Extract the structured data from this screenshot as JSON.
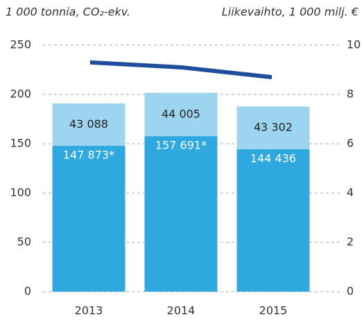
{
  "chart_data": {
    "type": "bar",
    "title": "1 000 tonnia, CO₂-ekv.",
    "y2_title": "Liikevaihto, 1 000 milj. €",
    "stacked": true,
    "categories": [
      "2013",
      "2014",
      "2015"
    ],
    "series": [
      {
        "color": "#2ea8df",
        "values": [
          147.873,
          157.691,
          144.436
        ],
        "value_labels": [
          "147 873*",
          "157 691*",
          "144 436"
        ],
        "label_color": "#ffffff"
      },
      {
        "color": "#9dd5f0",
        "values": [
          43.088,
          44.005,
          43.302
        ],
        "value_labels": [
          "43 088",
          "44 005",
          "43 302"
        ],
        "label_color": "#222222"
      },
      {
        "type": "line",
        "axis": "y2",
        "color": "#1f4e9c",
        "values": [
          9.3,
          9.1,
          8.7
        ]
      }
    ],
    "ylim": [
      0,
      250
    ],
    "yticks": [
      0,
      50,
      100,
      150,
      200,
      250
    ],
    "y2lim": [
      0,
      10
    ],
    "y2ticks": [
      0,
      2,
      4,
      6,
      8,
      10
    ],
    "grid": true
  }
}
